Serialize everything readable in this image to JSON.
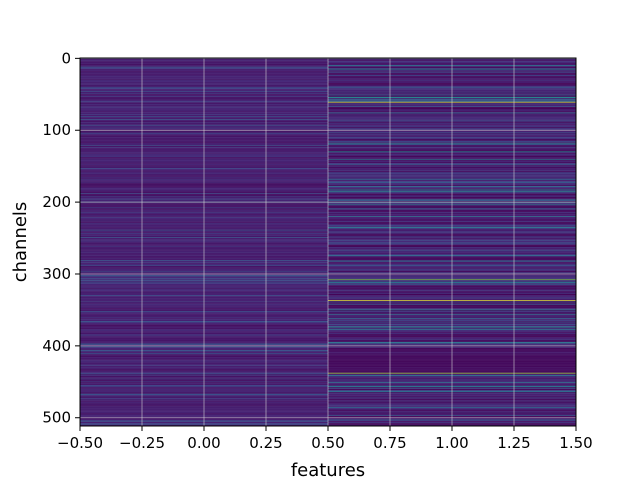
{
  "chart_data": {
    "type": "heatmap",
    "title": "",
    "xlabel": "features",
    "ylabel": "channels",
    "colormap": "viridis",
    "grid": true,
    "x": [
      0,
      1
    ],
    "xlim": [
      -0.5,
      1.5
    ],
    "ylim": [
      511.5,
      -0.5
    ],
    "num_rows": 512,
    "xticks": [
      {
        "value": -0.5,
        "label": "−0.50"
      },
      {
        "value": -0.25,
        "label": "−0.25"
      },
      {
        "value": 0.0,
        "label": "0.00"
      },
      {
        "value": 0.25,
        "label": "0.25"
      },
      {
        "value": 0.5,
        "label": "0.50"
      },
      {
        "value": 0.75,
        "label": "0.75"
      },
      {
        "value": 1.0,
        "label": "1.00"
      },
      {
        "value": 1.25,
        "label": "1.25"
      },
      {
        "value": 1.5,
        "label": "1.50"
      }
    ],
    "yticks": [
      {
        "value": 0,
        "label": "0"
      },
      {
        "value": 100,
        "label": "100"
      },
      {
        "value": 200,
        "label": "200"
      },
      {
        "value": 300,
        "label": "300"
      },
      {
        "value": 400,
        "label": "400"
      },
      {
        "value": 500,
        "label": "500"
      }
    ],
    "highlight_rows": [
      {
        "column": 1,
        "row": 61,
        "value": 0.95
      },
      {
        "column": 1,
        "row": 200,
        "value": 0.55
      },
      {
        "column": 1,
        "row": 203,
        "value": 0.5
      },
      {
        "column": 1,
        "row": 308,
        "value": 0.85
      },
      {
        "column": 1,
        "row": 337,
        "value": 0.97
      },
      {
        "column": 1,
        "row": 438,
        "value": 0.9
      },
      {
        "column": 0,
        "row": 200,
        "value": 0.45
      }
    ],
    "region_notes": {
      "column0_range": [
        0.05,
        0.35
      ],
      "column1_range": [
        0.0,
        0.6
      ],
      "column1_low_band_rows": [
        410,
        437
      ]
    }
  }
}
